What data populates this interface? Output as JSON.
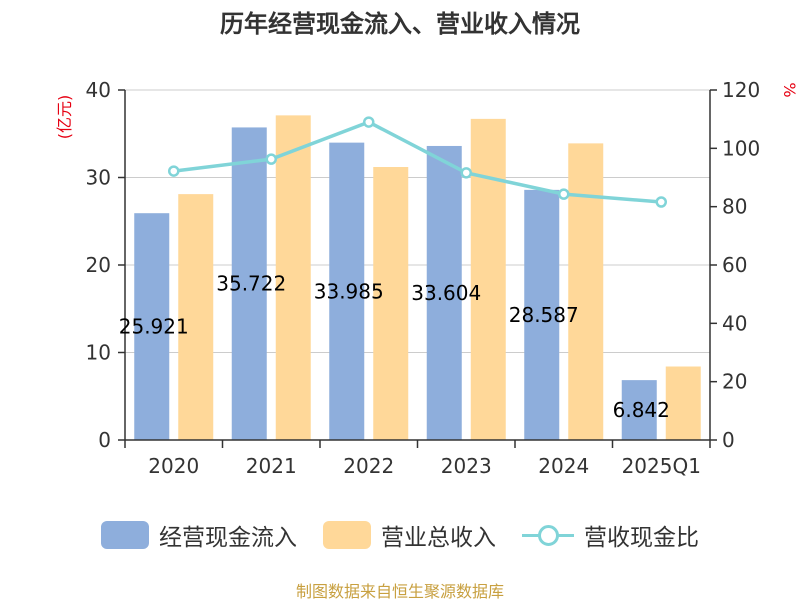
{
  "chart_data": {
    "type": "bar",
    "title": "历年经营现金流入、营业收入情况",
    "categories": [
      "2020",
      "2021",
      "2022",
      "2023",
      "2024",
      "2025Q1"
    ],
    "y_left_unit": "(亿元)",
    "y_right_unit": "%",
    "ylim_left": [
      0,
      40
    ],
    "ylim_right": [
      0,
      120
    ],
    "y_left_ticks": [
      "0",
      "10",
      "20",
      "30",
      "40"
    ],
    "y_right_ticks": [
      "0",
      "20",
      "40",
      "60",
      "80",
      "100",
      "120"
    ],
    "grid": true,
    "legend_position": "bottom",
    "series": [
      {
        "name": "经营现金流入",
        "kind": "bar",
        "axis": "left",
        "color": "#8eaedc",
        "values": [
          25.921,
          35.722,
          33.985,
          33.604,
          28.587,
          6.842
        ],
        "labels": [
          "25.921",
          "35.722",
          "33.985",
          "33.604",
          "28.587",
          "6.842"
        ]
      },
      {
        "name": "营业总收入",
        "kind": "bar",
        "axis": "left",
        "color": "#ffd899",
        "values": [
          28.1,
          37.1,
          31.2,
          36.7,
          33.9,
          8.4
        ]
      },
      {
        "name": "营收现金比",
        "kind": "line",
        "axis": "right",
        "color": "#80d4d8",
        "values": [
          92.2,
          96.3,
          109.0,
          91.6,
          84.3,
          81.6
        ]
      }
    ]
  },
  "source": "制图数据来自恒生聚源数据库"
}
